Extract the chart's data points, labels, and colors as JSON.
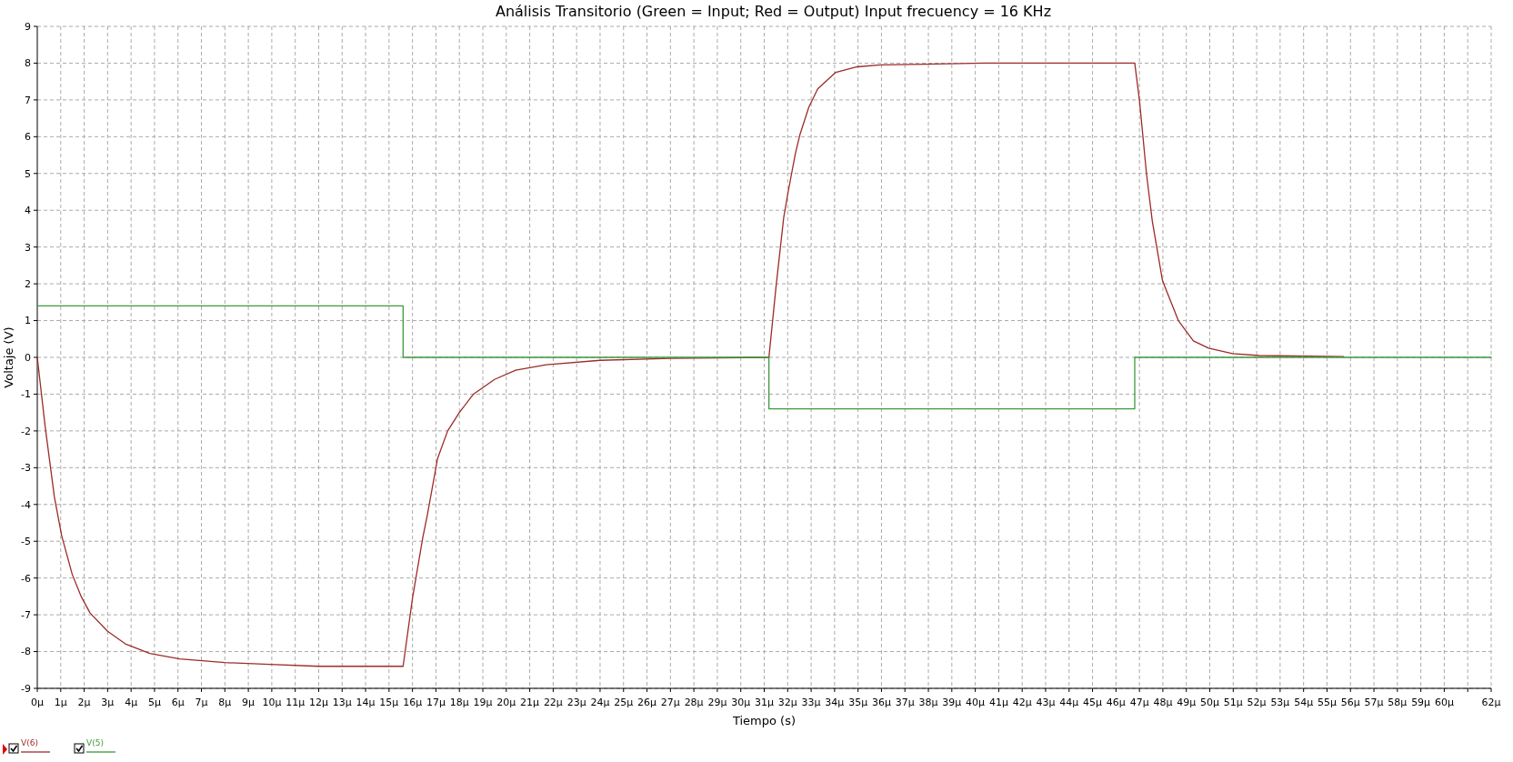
{
  "chart_data": {
    "type": "line",
    "title": "Análisis Transitorio (Green = Input; Red = Output) Input frecuency = 16 KHz",
    "xlabel": "Tiempo (s)",
    "ylabel": "Voltaje (V)",
    "xlim": [
      0,
      62
    ],
    "xticks": [
      {
        "value": 0,
        "label": "0µ"
      },
      {
        "value": 1,
        "label": "1µ"
      },
      {
        "value": 2,
        "label": "2µ"
      },
      {
        "value": 3,
        "label": "3µ"
      },
      {
        "value": 4,
        "label": "4µ"
      },
      {
        "value": 5,
        "label": "5µ"
      },
      {
        "value": 6,
        "label": "6µ"
      },
      {
        "value": 7,
        "label": "7µ"
      },
      {
        "value": 8,
        "label": "8µ"
      },
      {
        "value": 9,
        "label": "9µ"
      },
      {
        "value": 10,
        "label": "10µ"
      },
      {
        "value": 11,
        "label": "11µ"
      },
      {
        "value": 12,
        "label": "12µ"
      },
      {
        "value": 13,
        "label": "13µ"
      },
      {
        "value": 14,
        "label": "14µ"
      },
      {
        "value": 15,
        "label": "15µ"
      },
      {
        "value": 16,
        "label": "16µ"
      },
      {
        "value": 17,
        "label": "17µ"
      },
      {
        "value": 18,
        "label": "18µ"
      },
      {
        "value": 19,
        "label": "19µ"
      },
      {
        "value": 20,
        "label": "20µ"
      },
      {
        "value": 21,
        "label": "21µ"
      },
      {
        "value": 22,
        "label": "22µ"
      },
      {
        "value": 23,
        "label": "23µ"
      },
      {
        "value": 24,
        "label": "24µ"
      },
      {
        "value": 25,
        "label": "25µ"
      },
      {
        "value": 26,
        "label": "26µ"
      },
      {
        "value": 27,
        "label": "27µ"
      },
      {
        "value": 28,
        "label": "28µ"
      },
      {
        "value": 29,
        "label": "29µ"
      },
      {
        "value": 30,
        "label": "30µ"
      },
      {
        "value": 31,
        "label": "31µ"
      },
      {
        "value": 32,
        "label": "32µ"
      },
      {
        "value": 33,
        "label": "33µ"
      },
      {
        "value": 34,
        "label": "34µ"
      },
      {
        "value": 35,
        "label": "35µ"
      },
      {
        "value": 36,
        "label": "36µ"
      },
      {
        "value": 37,
        "label": "37µ"
      },
      {
        "value": 38,
        "label": "38µ"
      },
      {
        "value": 39,
        "label": "39µ"
      },
      {
        "value": 40,
        "label": "40µ"
      },
      {
        "value": 41,
        "label": "41µ"
      },
      {
        "value": 42,
        "label": "42µ"
      },
      {
        "value": 43,
        "label": "43µ"
      },
      {
        "value": 44,
        "label": "44µ"
      },
      {
        "value": 45,
        "label": "45µ"
      },
      {
        "value": 46,
        "label": "46µ"
      },
      {
        "value": 47,
        "label": "47µ"
      },
      {
        "value": 48,
        "label": "48µ"
      },
      {
        "value": 49,
        "label": "49µ"
      },
      {
        "value": 50,
        "label": "50µ"
      },
      {
        "value": 51,
        "label": "51µ"
      },
      {
        "value": 52,
        "label": "52µ"
      },
      {
        "value": 53,
        "label": "53µ"
      },
      {
        "value": 54,
        "label": "54µ"
      },
      {
        "value": 55,
        "label": "55µ"
      },
      {
        "value": 56,
        "label": "56µ"
      },
      {
        "value": 57,
        "label": "57µ"
      },
      {
        "value": 58,
        "label": "58µ"
      },
      {
        "value": 59,
        "label": "59µ"
      },
      {
        "value": 60,
        "label": "60µ"
      },
      {
        "value": 61,
        "label": null
      },
      {
        "value": 62,
        "label": "62µ"
      }
    ],
    "ylim": [
      -9,
      9
    ],
    "yticks": [
      -9,
      -8,
      -7,
      -6,
      -5,
      -4,
      -3,
      -2,
      -1,
      0,
      1,
      2,
      3,
      4,
      5,
      6,
      7,
      8,
      9
    ],
    "grid": true,
    "legend": "bottom left",
    "marker": "none",
    "line_style": "solid",
    "series": [
      {
        "name": "V(6)",
        "color": "#9e2a2a",
        "type": "line",
        "x": [
          0,
          0.34,
          0.73,
          1.04,
          1.49,
          1.87,
          2.25,
          3.0,
          3.78,
          4.8,
          6.07,
          8.0,
          9.9,
          12.0,
          15.6,
          16.0,
          16.44,
          16.63,
          17.07,
          17.5,
          18.0,
          18.6,
          19.5,
          20.4,
          21.7,
          24.0,
          27.0,
          31.2,
          31.5,
          31.83,
          32.02,
          32.33,
          32.52,
          32.9,
          33.28,
          34.05,
          34.96,
          35.95,
          40.4,
          46.8,
          47.0,
          47.3,
          47.55,
          47.98,
          48.1,
          48.66,
          49.3,
          49.95,
          50.97,
          52.1,
          55.7
        ],
        "values": [
          0,
          -1.9,
          -3.8,
          -4.85,
          -5.9,
          -6.5,
          -6.95,
          -7.45,
          -7.8,
          -8.05,
          -8.2,
          -8.3,
          -8.35,
          -8.4,
          -8.4,
          -6.55,
          -4.9,
          -4.3,
          -2.75,
          -2.0,
          -1.5,
          -1.0,
          -0.6,
          -0.35,
          -0.2,
          -0.08,
          -0.03,
          0,
          1.9,
          3.8,
          4.5,
          5.55,
          6.05,
          6.8,
          7.3,
          7.75,
          7.9,
          7.95,
          8.0,
          8.0,
          7.0,
          5.0,
          3.7,
          2.1,
          1.9,
          1.0,
          0.45,
          0.25,
          0.1,
          0.05,
          0.02
        ]
      },
      {
        "name": "V(5)",
        "color": "#3c9a3c",
        "type": "step",
        "x": [
          0,
          15.6,
          31.2,
          46.8,
          62
        ],
        "values": [
          1.4,
          0,
          -1.4,
          0,
          0
        ]
      }
    ]
  }
}
